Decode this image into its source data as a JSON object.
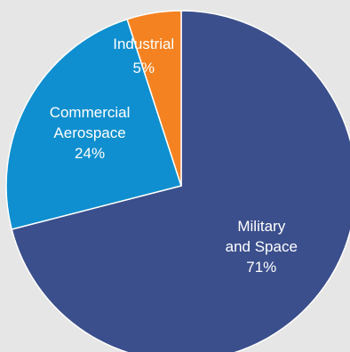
{
  "chart_data": {
    "type": "pie",
    "title": "",
    "series": [
      {
        "name": "",
        "values": [
          71,
          24,
          5
        ]
      }
    ],
    "categories": [
      "Military and Space",
      "Commercial Aerospace",
      "Industrial"
    ],
    "slices": [
      {
        "label_lines": [
          "Military",
          "and Space"
        ],
        "value": 71,
        "value_label": "71%",
        "color": "#3b4f8c"
      },
      {
        "label_lines": [
          "Commercial",
          "Aerospace"
        ],
        "value": 24,
        "value_label": "24%",
        "color": "#0f8fcf"
      },
      {
        "label_lines": [
          "Industrial"
        ],
        "value": 5,
        "value_label": "5%",
        "color": "#f58220"
      }
    ],
    "legend": "none",
    "start_angle": "top",
    "direction": "clockwise"
  }
}
